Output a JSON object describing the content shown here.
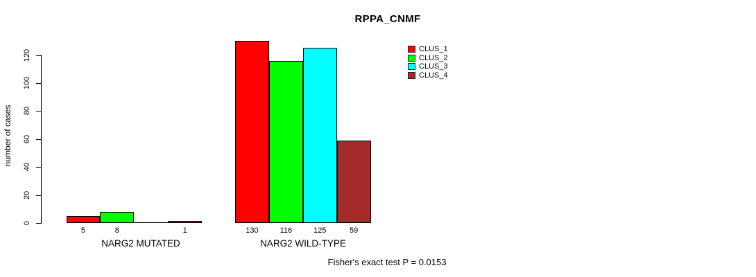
{
  "title": "RPPA_CNMF",
  "footer": "Fisher's exact test P = 0.0153",
  "y_axis": {
    "label": "number of cases",
    "ticks": [
      0,
      20,
      40,
      60,
      80,
      100,
      120
    ]
  },
  "legend": {
    "items": [
      {
        "label": "CLUS_1",
        "color": "#ff0000"
      },
      {
        "label": "CLUS_2",
        "color": "#00ff00"
      },
      {
        "label": "CLUS_3",
        "color": "#00ffff"
      },
      {
        "label": "CLUS_4",
        "color": "#a52a2a"
      }
    ]
  },
  "chart_data": {
    "type": "bar",
    "title": "RPPA_CNMF",
    "categories": [
      "NARG2 MUTATED",
      "NARG2 WILD-TYPE"
    ],
    "series": [
      {
        "name": "CLUS_1",
        "color": "#ff0000",
        "values": [
          5,
          130
        ]
      },
      {
        "name": "CLUS_2",
        "color": "#00ff00",
        "values": [
          8,
          116
        ]
      },
      {
        "name": "CLUS_3",
        "color": "#00ffff",
        "values": [
          0,
          125
        ]
      },
      {
        "name": "CLUS_4",
        "color": "#a52a2a",
        "values": [
          1,
          59
        ]
      }
    ],
    "bar_value_labels": [
      [
        "5",
        "8",
        "",
        "1"
      ],
      [
        "130",
        "116",
        "125",
        "59"
      ]
    ],
    "xlabel": "",
    "ylabel": "number of cases",
    "ylim": [
      0,
      130
    ],
    "axis_tick_max": 120,
    "grid": false,
    "legend_position": "top-right",
    "annotation": "Fisher's exact test P = 0.0153"
  }
}
